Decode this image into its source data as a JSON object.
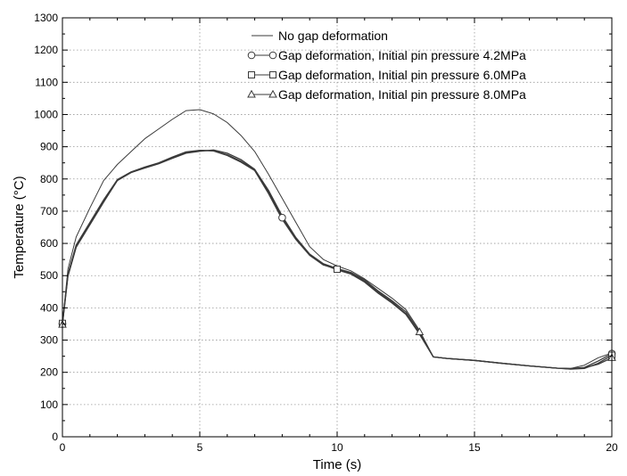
{
  "chart_data": {
    "type": "line",
    "xlabel": "Time (s)",
    "ylabel": "Temperature (°C)",
    "xlim": [
      0,
      20
    ],
    "ylim": [
      0,
      1300
    ],
    "x_ticks": [
      0,
      5,
      10,
      15,
      20
    ],
    "y_ticks": [
      0,
      100,
      200,
      300,
      400,
      500,
      600,
      700,
      800,
      900,
      1000,
      1100,
      1200,
      1300
    ],
    "grid": true,
    "legend_position": "top-right",
    "series": [
      {
        "name": "No gap deformation",
        "marker": "none",
        "color": "#3a3a3a",
        "x": [
          0,
          0.2,
          0.5,
          1,
          1.5,
          2,
          2.5,
          3,
          3.5,
          4,
          4.5,
          5,
          5.5,
          6,
          6.5,
          7,
          7.5,
          8,
          8.5,
          9,
          9.5,
          10,
          10.5,
          11,
          11.5,
          12,
          12.5,
          13,
          13.5,
          14,
          15,
          16,
          17,
          18,
          18.5,
          19,
          19.5,
          20
        ],
        "y": [
          350,
          520,
          620,
          710,
          795,
          845,
          885,
          925,
          955,
          985,
          1012,
          1015,
          1002,
          975,
          935,
          885,
          815,
          740,
          665,
          590,
          550,
          530,
          515,
          490,
          460,
          430,
          395,
          330,
          248,
          243,
          237,
          228,
          220,
          213,
          212,
          222,
          245,
          260
        ]
      },
      {
        "name": "Gap deformation, Initial pin pressure 4.2MPa",
        "marker": "circle",
        "color": "#3a3a3a",
        "x": [
          0,
          0.2,
          0.5,
          1,
          1.5,
          2,
          2.5,
          3,
          3.5,
          4,
          4.5,
          5,
          5.5,
          6,
          6.5,
          7,
          7.5,
          8,
          8.5,
          9,
          9.5,
          10,
          10.5,
          11,
          11.5,
          12,
          12.5,
          13,
          13.5,
          14,
          15,
          16,
          17,
          18,
          18.5,
          19,
          19.5,
          20
        ],
        "y": [
          350,
          500,
          590,
          660,
          730,
          795,
          820,
          835,
          848,
          865,
          882,
          888,
          888,
          875,
          855,
          828,
          760,
          680,
          615,
          565,
          535,
          518,
          505,
          480,
          445,
          415,
          380,
          320,
          248,
          243,
          237,
          228,
          220,
          213,
          212,
          215,
          235,
          258
        ]
      },
      {
        "name": "Gap deformation, Initial pin pressure 6.0MPa",
        "marker": "square",
        "color": "#3a3a3a",
        "x": [
          0,
          0.2,
          0.5,
          1,
          1.5,
          2,
          2.5,
          3,
          3.5,
          4,
          4.5,
          5,
          5.5,
          6,
          6.5,
          7,
          7.5,
          8,
          8.5,
          9,
          9.5,
          10,
          10.5,
          11,
          11.5,
          12,
          12.5,
          13,
          13.5,
          14,
          15,
          16,
          17,
          18,
          18.5,
          19,
          19.5,
          20
        ],
        "y": [
          352,
          505,
          595,
          665,
          735,
          798,
          822,
          837,
          850,
          868,
          884,
          889,
          887,
          873,
          852,
          826,
          755,
          675,
          612,
          563,
          533,
          520,
          508,
          483,
          448,
          418,
          382,
          318,
          248,
          243,
          237,
          228,
          220,
          213,
          210,
          212,
          228,
          253
        ]
      },
      {
        "name": "Gap deformation, Initial pin pressure 8.0MPa",
        "marker": "triangle",
        "color": "#3a3a3a",
        "x": [
          0,
          0.2,
          0.5,
          1,
          1.5,
          2,
          2.5,
          3,
          3.5,
          4,
          4.5,
          5,
          5.5,
          6,
          6.5,
          7,
          7.5,
          8,
          8.5,
          9,
          9.5,
          10,
          10.5,
          11,
          11.5,
          12,
          12.5,
          13,
          13.5,
          14,
          15,
          16,
          17,
          18,
          18.5,
          19,
          19.5,
          20
        ],
        "y": [
          348,
          498,
          588,
          658,
          728,
          796,
          820,
          834,
          847,
          864,
          880,
          886,
          890,
          880,
          860,
          830,
          765,
          685,
          618,
          567,
          537,
          522,
          510,
          487,
          452,
          422,
          388,
          325,
          248,
          243,
          237,
          228,
          220,
          213,
          211,
          214,
          225,
          245
        ]
      }
    ],
    "marker_points": [
      {
        "series": 0,
        "x": []
      },
      {
        "series": 1,
        "x": [
          0,
          8,
          20
        ]
      },
      {
        "series": 2,
        "x": [
          0,
          10,
          20
        ]
      },
      {
        "series": 3,
        "x": [
          0,
          13,
          20
        ]
      }
    ]
  }
}
